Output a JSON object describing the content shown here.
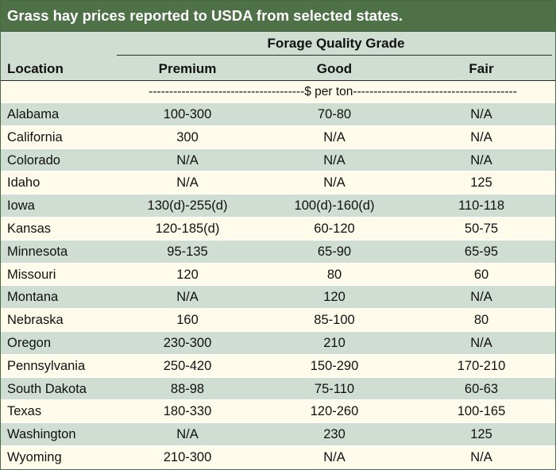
{
  "title": "Grass hay prices reported to USDA from selected states.",
  "header": {
    "group": "Forage Quality Grade",
    "columns": [
      "Location",
      "Premium",
      "Good",
      "Fair"
    ]
  },
  "units": "--------------------------------------$ per ton----------------------------------------",
  "colors": {
    "title_bg": "#4f7148",
    "band_green": "#d0ddd2",
    "band_cream": "#fffbea"
  },
  "rows": [
    {
      "location": "Alabama",
      "premium": "100-300",
      "good": "70-80",
      "fair": "N/A"
    },
    {
      "location": "California",
      "premium": "300",
      "good": "N/A",
      "fair": "N/A"
    },
    {
      "location": "Colorado",
      "premium": "N/A",
      "good": "N/A",
      "fair": "N/A"
    },
    {
      "location": "Idaho",
      "premium": "N/A",
      "good": "N/A",
      "fair": "125"
    },
    {
      "location": "Iowa",
      "premium": "130(d)-255(d)",
      "good": "100(d)-160(d)",
      "fair": "110-118"
    },
    {
      "location": "Kansas",
      "premium": "120-185(d)",
      "good": "60-120",
      "fair": "50-75"
    },
    {
      "location": "Minnesota",
      "premium": "95-135",
      "good": "65-90",
      "fair": "65-95"
    },
    {
      "location": "Missouri",
      "premium": "120",
      "good": "80",
      "fair": "60"
    },
    {
      "location": "Montana",
      "premium": "N/A",
      "good": "120",
      "fair": "N/A"
    },
    {
      "location": "Nebraska",
      "premium": "160",
      "good": "85-100",
      "fair": "80"
    },
    {
      "location": "Oregon",
      "premium": "230-300",
      "good": "210",
      "fair": "N/A"
    },
    {
      "location": "Pennsylvania",
      "premium": "250-420",
      "good": "150-290",
      "fair": "170-210"
    },
    {
      "location": "South Dakota",
      "premium": "88-98",
      "good": "75-110",
      "fair": "60-63"
    },
    {
      "location": "Texas",
      "premium": "180-330",
      "good": "120-260",
      "fair": "100-165"
    },
    {
      "location": "Washington",
      "premium": "N/A",
      "good": "230",
      "fair": "125"
    },
    {
      "location": "Wyoming",
      "premium": "210-300",
      "good": "N/A",
      "fair": "N/A"
    }
  ]
}
